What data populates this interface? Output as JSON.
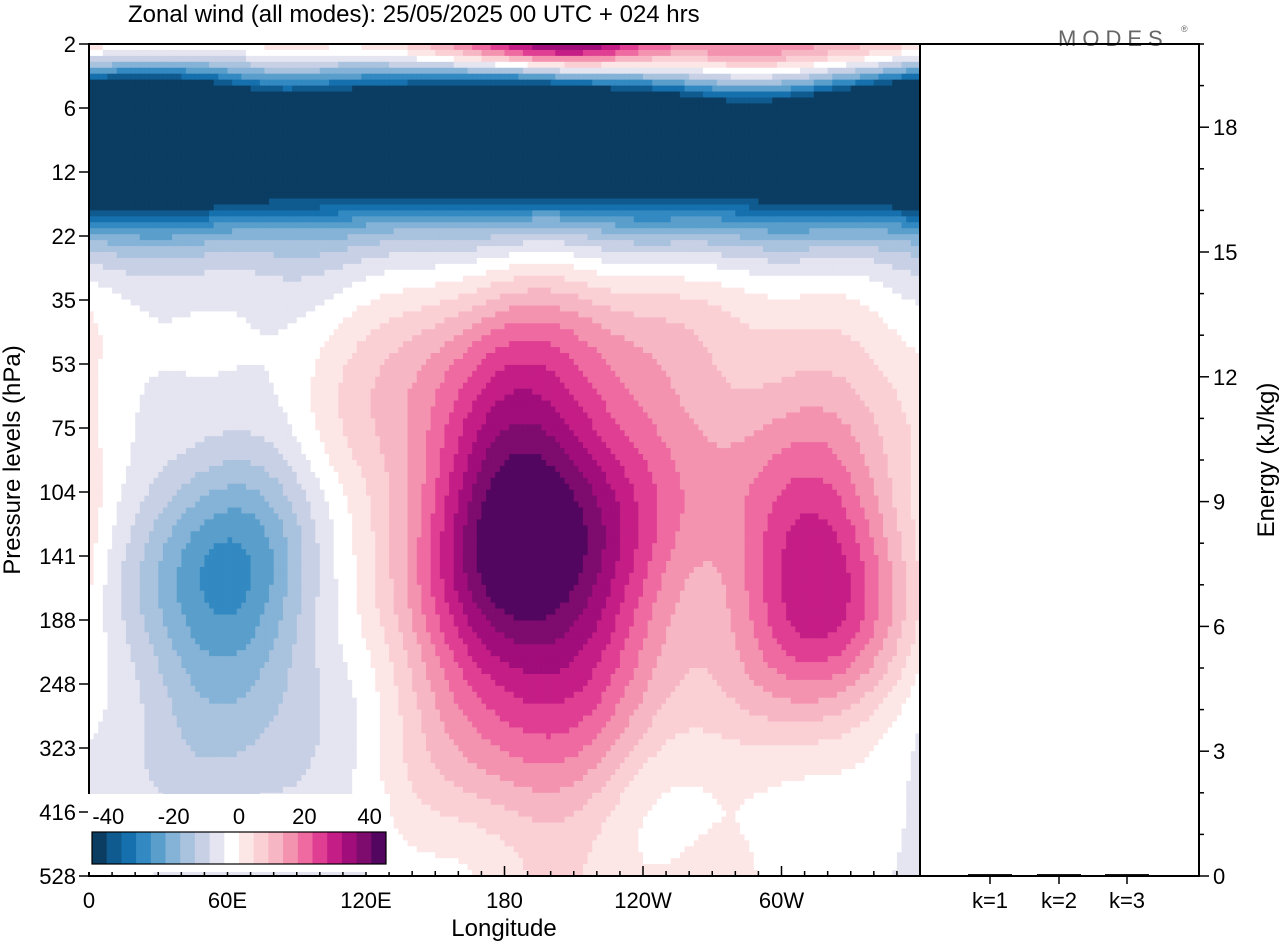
{
  "title": "Zonal wind (all modes):  25/05/2025  00 UTC  + 024 hrs",
  "logo": "MODES",
  "chart_data": [
    {
      "type": "heatmap",
      "xlabel": "Longitude",
      "ylabel": "Pressure levels (hPa)",
      "x_ticks": [
        "0",
        "60E",
        "120E",
        "180",
        "120W",
        "60W"
      ],
      "x_tick_values": [
        0,
        60,
        120,
        180,
        240,
        300
      ],
      "xlim": [
        0,
        360
      ],
      "y_ticks": [
        "2",
        "6",
        "12",
        "22",
        "35",
        "53",
        "75",
        "104",
        "141",
        "188",
        "248",
        "323",
        "416",
        "528"
      ],
      "colorbar": {
        "labels": [
          "-40",
          "-20",
          "0",
          "20",
          "40"
        ],
        "label_values": [
          -40,
          -20,
          0,
          20,
          40
        ],
        "range": [
          -45,
          45
        ],
        "colors": [
          "#0b3d62",
          "#0f5a8e",
          "#1570ad",
          "#3389c1",
          "#5a9ecc",
          "#84b3d7",
          "#a9c2de",
          "#c8d0e6",
          "#e4e5f1",
          "#ffffff",
          "#fde6e6",
          "#fad0d5",
          "#f7b6c3",
          "#f493b0",
          "#ee6aa1",
          "#e03e92",
          "#c51d86",
          "#a10d7b",
          "#7e0b6e",
          "#530660"
        ]
      },
      "blobs": [
        {
          "lon": 0,
          "lev": 0,
          "w": 360,
          "h": 1.2,
          "v": 6
        },
        {
          "lon": 200,
          "lev": 0,
          "w": 80,
          "h": 0.6,
          "v": 18
        },
        {
          "lon": 200,
          "lev": 0,
          "w": 30,
          "h": 0.3,
          "v": 30
        },
        {
          "lon": 300,
          "lev": 0.1,
          "w": 50,
          "h": 0.5,
          "v": 12
        },
        {
          "lon": 0,
          "lev": 0.3,
          "w": 60,
          "h": 0.5,
          "v": 10
        },
        {
          "lon": 180,
          "lev": 1.6,
          "w": 360,
          "h": 1.3,
          "v": -12
        },
        {
          "lon": 180,
          "lev": 1.5,
          "w": 360,
          "h": 0.9,
          "v": -18
        },
        {
          "lon": 15,
          "lev": 1.3,
          "w": 40,
          "h": 0.7,
          "v": -30
        },
        {
          "lon": 40,
          "lev": 1.4,
          "w": 30,
          "h": 0.6,
          "v": -22
        },
        {
          "lon": 155,
          "lev": 1.35,
          "w": 80,
          "h": 0.7,
          "v": -25
        },
        {
          "lon": 190,
          "lev": 1.3,
          "w": 50,
          "h": 0.6,
          "v": -30
        },
        {
          "lon": 260,
          "lev": 1.4,
          "w": 120,
          "h": 0.7,
          "v": -26
        },
        {
          "lon": 355,
          "lev": 1.3,
          "w": 30,
          "h": 0.6,
          "v": -30
        },
        {
          "lon": 90,
          "lev": 2.2,
          "w": 80,
          "h": 0.6,
          "v": -10
        },
        {
          "lon": 300,
          "lev": 2.4,
          "w": 60,
          "h": 0.6,
          "v": -10
        },
        {
          "lon": 180,
          "lev": 3.3,
          "w": 360,
          "h": 0.7,
          "v": -5
        },
        {
          "lon": 190,
          "lev": 7.9,
          "w": 45,
          "h": 3.5,
          "v": 15
        },
        {
          "lon": 190,
          "lev": 7.5,
          "w": 30,
          "h": 1.8,
          "v": 22
        },
        {
          "lon": 200,
          "lev": 9.5,
          "w": 35,
          "h": 2.0,
          "v": 10
        },
        {
          "lon": 320,
          "lev": 8.4,
          "w": 40,
          "h": 2.5,
          "v": 14
        },
        {
          "lon": 320,
          "lev": 8.5,
          "w": 25,
          "h": 1.3,
          "v": 20
        },
        {
          "lon": 260,
          "lev": 6.0,
          "w": 90,
          "h": 2.8,
          "v": 6
        },
        {
          "lon": 120,
          "lev": 6.2,
          "w": 70,
          "h": 2.5,
          "v": 4
        },
        {
          "lon": 60,
          "lev": 8.3,
          "w": 30,
          "h": 1.5,
          "v": -18
        },
        {
          "lon": 55,
          "lev": 8.5,
          "w": 55,
          "h": 2.8,
          "v": -9
        },
        {
          "lon": 20,
          "lev": 8.8,
          "w": 60,
          "h": 3.0,
          "v": -5
        },
        {
          "lon": 280,
          "lev": 9.3,
          "w": 22,
          "h": 1.2,
          "v": -3
        },
        {
          "lon": 240,
          "lev": 11.6,
          "w": 30,
          "h": 1.5,
          "v": -5
        },
        {
          "lon": 90,
          "lev": 12.6,
          "w": 25,
          "h": 1.5,
          "v": -5
        },
        {
          "lon": 310,
          "lev": 12.0,
          "w": 30,
          "h": 1.0,
          "v": -4
        },
        {
          "lon": 155,
          "lev": 12.8,
          "w": 30,
          "h": 1.2,
          "v": -4
        },
        {
          "lon": 355,
          "lev": 12.0,
          "w": 20,
          "h": 2.5,
          "v": -4
        }
      ]
    },
    {
      "type": "bar",
      "categories": [
        "k=1",
        "k=2",
        "k=3"
      ],
      "values": [
        0.02,
        0.02,
        0.02
      ],
      "ylabel": "Energy (kJ/kg)",
      "ylim": [
        0,
        20
      ],
      "y_ticks": [
        0,
        3,
        6,
        9,
        12,
        15,
        18
      ]
    }
  ]
}
